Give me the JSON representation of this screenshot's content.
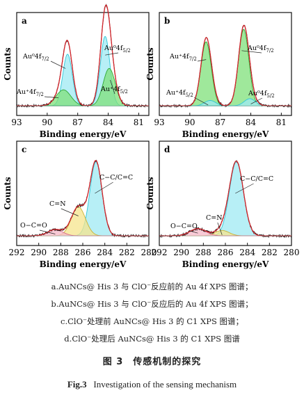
{
  "colors": {
    "raw": "#111111",
    "envelope": "#d4262c",
    "cyan_fill": "#9fe9f3",
    "cyan_line": "#2fc7d8",
    "green_fill": "#7fe07a",
    "green_line": "#2fa836",
    "yellow_fill": "#f6e48c",
    "yellow_line": "#c9b134",
    "pink_fill": "#f6b8c8",
    "pink_line": "#d76a8a"
  },
  "chart_data": [
    {
      "type": "area",
      "panel": "a",
      "xlabel": "Binding energy/eV",
      "ylabel": "Counts",
      "x_reversed": true,
      "xlim": [
        93,
        80
      ],
      "xticks": [
        "93",
        "90",
        "87",
        "84",
        "81"
      ],
      "series": [
        {
          "name": "Au⁰4f7/2",
          "color": "cyan",
          "center": 88.0,
          "fwhm": 1.1,
          "height": 0.58
        },
        {
          "name": "Au⁺4f7/2",
          "color": "green",
          "center": 88.4,
          "fwhm": 1.7,
          "height": 0.18
        },
        {
          "name": "Au⁰4f5/2",
          "color": "cyan",
          "center": 84.3,
          "fwhm": 1.1,
          "height": 0.78
        },
        {
          "name": "Au⁺4f5/2",
          "color": "green",
          "center": 83.9,
          "fwhm": 1.4,
          "height": 0.42
        }
      ],
      "labels": [
        {
          "text": "Au⁰4f",
          "sub": "7/2"
        },
        {
          "text": "Au⁺4f",
          "sub": "7/2"
        },
        {
          "text": "Au⁰4f",
          "sub": "5/2"
        },
        {
          "text": "Au⁺4f",
          "sub": "5/2"
        }
      ]
    },
    {
      "type": "area",
      "panel": "b",
      "xlabel": "Binding energy/eV",
      "ylabel": "Counts",
      "x_reversed": true,
      "xlim": [
        93,
        80
      ],
      "xticks": [
        "93",
        "90",
        "87",
        "84",
        "81"
      ],
      "series": [
        {
          "name": "Au⁺4f7/2",
          "color": "green",
          "center": 88.4,
          "fwhm": 1.2,
          "height": 0.72
        },
        {
          "name": "Au⁰4f7/2",
          "color": "cyan",
          "center": 88.0,
          "fwhm": 1.3,
          "height": 0.06
        },
        {
          "name": "Au⁺4f5/2",
          "color": "green",
          "center": 84.7,
          "fwhm": 1.2,
          "height": 0.86
        },
        {
          "name": "Au⁰4f5/2",
          "color": "cyan",
          "center": 84.1,
          "fwhm": 1.3,
          "height": 0.08
        }
      ],
      "labels": [
        {
          "text": "Au⁺4f",
          "sub": "7/2"
        },
        {
          "text": "Au⁺4f",
          "sub": "5/2"
        },
        {
          "text": "Au⁰4f",
          "sub": "7/2"
        },
        {
          "text": "Au⁰4f",
          "sub": "5/2"
        }
      ]
    },
    {
      "type": "area",
      "panel": "c",
      "xlabel": "Binding energy/eV",
      "ylabel": "Counts",
      "x_reversed": true,
      "xlim": [
        292,
        280
      ],
      "xticks": [
        "292",
        "290",
        "288",
        "286",
        "284",
        "282",
        "280"
      ],
      "series": [
        {
          "name": "C−C/C=C",
          "color": "cyan",
          "center": 284.8,
          "fwhm": 1.3,
          "height": 0.82
        },
        {
          "name": "C=N",
          "color": "yellow",
          "center": 286.4,
          "fwhm": 1.5,
          "height": 0.32
        },
        {
          "name": "O−C=O",
          "color": "pink",
          "center": 288.5,
          "fwhm": 1.6,
          "height": 0.07
        }
      ],
      "labels": [
        {
          "text": "C−C/C=C"
        },
        {
          "text": "C=N"
        },
        {
          "text": "O−C=O"
        }
      ]
    },
    {
      "type": "area",
      "panel": "d",
      "xlabel": "Binding energy/eV",
      "ylabel": "Counts",
      "x_reversed": true,
      "xlim": [
        292,
        280
      ],
      "xticks": [
        "292",
        "290",
        "288",
        "286",
        "284",
        "282",
        "280"
      ],
      "series": [
        {
          "name": "C−C/C=C",
          "color": "cyan",
          "center": 285.0,
          "fwhm": 1.5,
          "height": 0.82
        },
        {
          "name": "C=N",
          "color": "yellow",
          "center": 286.3,
          "fwhm": 1.5,
          "height": 0.06
        },
        {
          "name": "O−C=O",
          "color": "pink",
          "center": 288.5,
          "fwhm": 1.7,
          "height": 0.08
        }
      ],
      "labels": [
        {
          "text": "C−C/C=C"
        },
        {
          "text": "C=N"
        },
        {
          "text": "O−C=O"
        }
      ]
    }
  ],
  "caption": {
    "line_a": "a.AuNCs@ His 3 与 ClO⁻反应前的 Au 4f XPS 图谱；",
    "line_b": "b.AuNCs@ His 3 与 ClO⁻反应后的 Au 4f XPS 图谱；",
    "line_c": "c.ClO⁻处理前 AuNCs@ His 3 的 C1 XPS 图谱；",
    "line_d": "d.ClO⁻处理后 AuNCs@ His 3 的 C1 XPS 图谱",
    "title_cn": "图 3　传感机制的探究",
    "title_en_prefix": "Fig.3",
    "title_en": "Investigation of the sensing mechanism"
  }
}
